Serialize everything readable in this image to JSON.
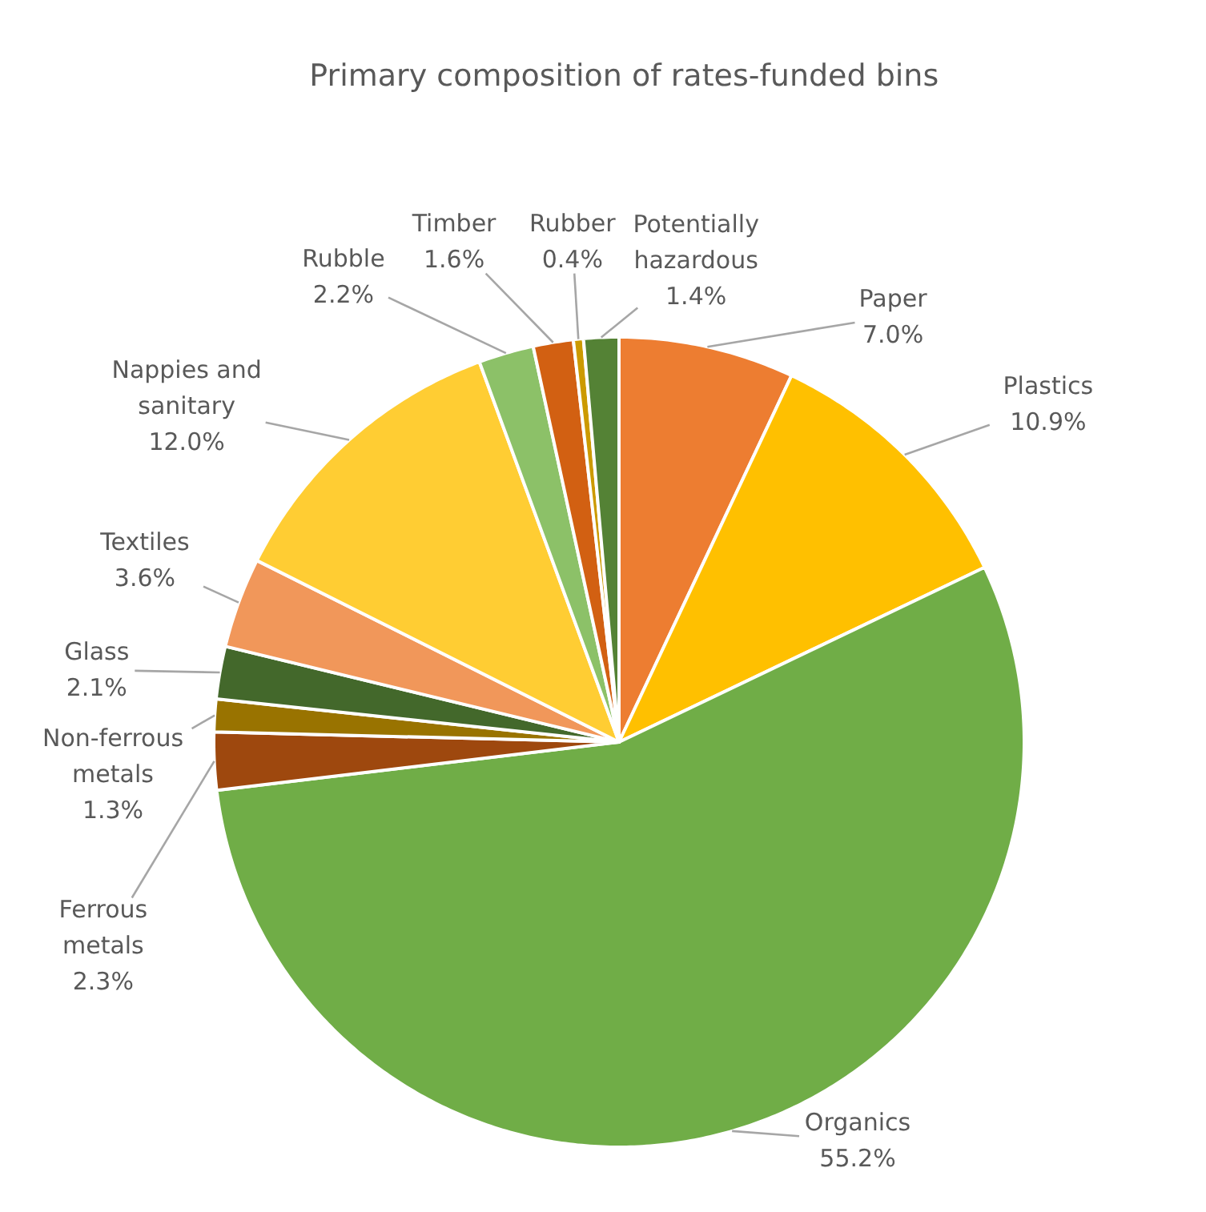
{
  "chart_data": {
    "type": "pie",
    "title": "Primary composition of rates-funded bins",
    "categories": [
      "Paper",
      "Plastics",
      "Organics",
      "Ferrous metals",
      "Non-ferrous metals",
      "Glass",
      "Textiles",
      "Nappies and sanitary",
      "Rubble",
      "Timber",
      "Rubber",
      "Potentially hazardous"
    ],
    "values": [
      7.0,
      10.9,
      55.2,
      2.3,
      1.3,
      2.1,
      3.6,
      12.0,
      2.2,
      1.6,
      0.4,
      1.4
    ],
    "value_labels": [
      "7.0%",
      "10.9%",
      "55.2%",
      "2.3%",
      "1.3%",
      "2.1%",
      "3.6%",
      "12.0%",
      "2.2%",
      "1.6%",
      "0.4%",
      "1.4%"
    ],
    "colors": [
      "#ed7d31",
      "#ffc000",
      "#70ad47",
      "#9e480e",
      "#997300",
      "#43682b",
      "#f1975a",
      "#ffcd33",
      "#8cc168",
      "#d26012",
      "#cc9a00",
      "#548235"
    ]
  }
}
